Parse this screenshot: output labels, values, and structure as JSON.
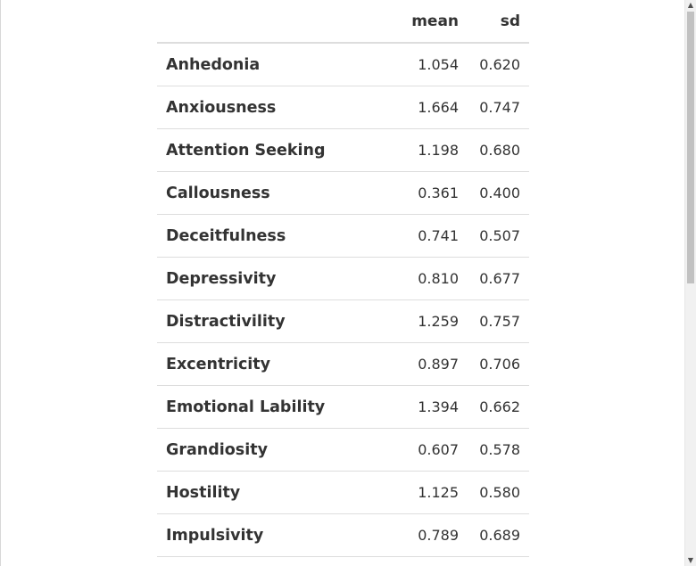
{
  "table": {
    "headers": {
      "name": "",
      "mean": "mean",
      "sd": "sd"
    },
    "rows": [
      {
        "name": "Anhedonia",
        "mean": "1.054",
        "sd": "0.620"
      },
      {
        "name": "Anxiousness",
        "mean": "1.664",
        "sd": "0.747"
      },
      {
        "name": "Attention Seeking",
        "mean": "1.198",
        "sd": "0.680"
      },
      {
        "name": "Callousness",
        "mean": "0.361",
        "sd": "0.400"
      },
      {
        "name": "Deceitfulness",
        "mean": "0.741",
        "sd": "0.507"
      },
      {
        "name": "Depressivity",
        "mean": "0.810",
        "sd": "0.677"
      },
      {
        "name": "Distractivility",
        "mean": "1.259",
        "sd": "0.757"
      },
      {
        "name": "Excentricity",
        "mean": "0.897",
        "sd": "0.706"
      },
      {
        "name": "Emotional Lability",
        "mean": "1.394",
        "sd": "0.662"
      },
      {
        "name": "Grandiosity",
        "mean": "0.607",
        "sd": "0.578"
      },
      {
        "name": "Hostility",
        "mean": "1.125",
        "sd": "0.580"
      },
      {
        "name": "Impulsivity",
        "mean": "0.789",
        "sd": "0.689"
      }
    ]
  },
  "scrollbar": {
    "up_icon": "triangle-up-icon",
    "down_icon": "triangle-down-icon"
  }
}
